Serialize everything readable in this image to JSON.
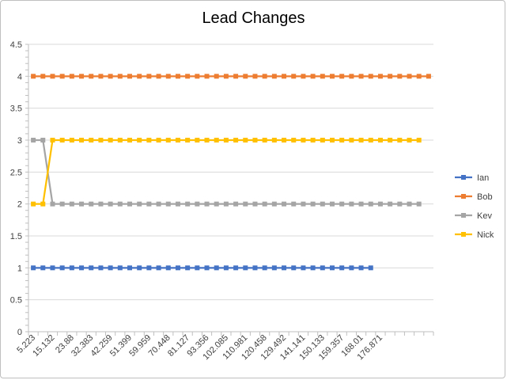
{
  "chart_data": {
    "type": "line",
    "title": "Lead Changes",
    "xlabel": "",
    "ylabel": "",
    "ylim": [
      0,
      4.5
    ],
    "y_ticks": [
      "0",
      "0.5",
      "1",
      "1.5",
      "2",
      "2.5",
      "3",
      "3.5",
      "4",
      "4.5"
    ],
    "x_labels": [
      "5.223",
      "15.132",
      "23.88",
      "32.383",
      "42.259",
      "51.399",
      "59.959",
      "70.448",
      "81.127",
      "93.356",
      "102.085",
      "110.981",
      "120.458",
      "129.492",
      "141.141",
      "150.133",
      "159.357",
      "168.01",
      "176.871"
    ],
    "x_label_every": 2,
    "category_count": 42,
    "grid": true,
    "legend_position": "right",
    "series": [
      {
        "name": "Ian",
        "color": "#4472c4",
        "values": [
          1,
          1,
          1,
          1,
          1,
          1,
          1,
          1,
          1,
          1,
          1,
          1,
          1,
          1,
          1,
          1,
          1,
          1,
          1,
          1,
          1,
          1,
          1,
          1,
          1,
          1,
          1,
          1,
          1,
          1,
          1,
          1,
          1,
          1,
          1,
          1,
          null,
          null,
          null,
          null,
          null,
          null
        ]
      },
      {
        "name": "Bob",
        "color": "#ed7d31",
        "values": [
          4,
          4,
          4,
          4,
          4,
          4,
          4,
          4,
          4,
          4,
          4,
          4,
          4,
          4,
          4,
          4,
          4,
          4,
          4,
          4,
          4,
          4,
          4,
          4,
          4,
          4,
          4,
          4,
          4,
          4,
          4,
          4,
          4,
          4,
          4,
          4,
          4,
          4,
          4,
          4,
          4,
          4
        ]
      },
      {
        "name": "Kev",
        "color": "#a5a5a5",
        "values": [
          3,
          3,
          2,
          2,
          2,
          2,
          2,
          2,
          2,
          2,
          2,
          2,
          2,
          2,
          2,
          2,
          2,
          2,
          2,
          2,
          2,
          2,
          2,
          2,
          2,
          2,
          2,
          2,
          2,
          2,
          2,
          2,
          2,
          2,
          2,
          2,
          2,
          2,
          2,
          2,
          2,
          null
        ]
      },
      {
        "name": "Nick",
        "color": "#ffc000",
        "values": [
          2,
          2,
          3,
          3,
          3,
          3,
          3,
          3,
          3,
          3,
          3,
          3,
          3,
          3,
          3,
          3,
          3,
          3,
          3,
          3,
          3,
          3,
          3,
          3,
          3,
          3,
          3,
          3,
          3,
          3,
          3,
          3,
          3,
          3,
          3,
          3,
          3,
          3,
          3,
          3,
          3,
          null
        ]
      }
    ]
  }
}
